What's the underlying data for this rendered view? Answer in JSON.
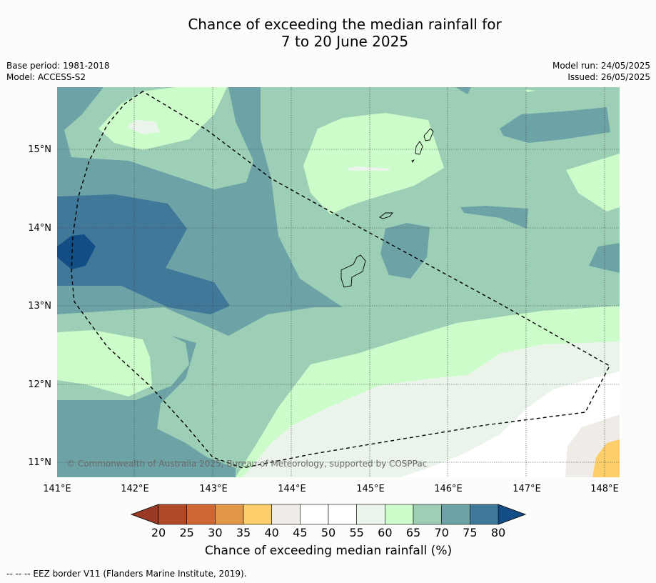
{
  "title_line1": "Chance of exceeding the median rainfall for",
  "title_line2": "7 to 20 June 2025",
  "base_period": "Base period: 1981-2018",
  "model": "Model: ACCESS-S2",
  "model_run": "Model run: 24/05/2025",
  "issued": "Issued: 26/05/2025",
  "copyright": "© Commonwealth of Australia 2025, Bureau of Meteorology, supported by COSPPac",
  "lon_labels": [
    "141°E",
    "142°E",
    "143°E",
    "144°E",
    "145°E",
    "146°E",
    "147°E",
    "148°E"
  ],
  "lat_labels": [
    "15°N",
    "14°N",
    "13°N",
    "12°N",
    "11°N"
  ],
  "colorbar": {
    "title": "Chance of exceeding median rainfall (%)",
    "ticks": [
      "20",
      "25",
      "30",
      "35",
      "40",
      "45",
      "50",
      "55",
      "60",
      "65",
      "70",
      "75",
      "80"
    ],
    "colors": [
      "#b24a2a",
      "#cf6633",
      "#e39749",
      "#fdcf6a",
      "#efebe7",
      "#ffffff",
      "#ffffff",
      "#ebf4eb",
      "#cbfcc9",
      "#9dcfb6",
      "#6da3a6",
      "#40789a"
    ],
    "under_color": "#9a3a25",
    "over_color": "#134d86"
  },
  "eez_note": "--  --  -- EEZ border V11 (Flanders Marine Institute, 2019)."
}
